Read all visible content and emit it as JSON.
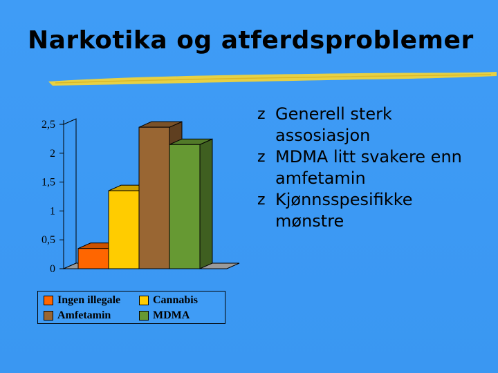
{
  "slide": {
    "title": "Narkotika og atferdsproblemer",
    "bullets": [
      {
        "lines": [
          "Generell sterk",
          "assosiasjon"
        ]
      },
      {
        "lines": [
          "MDMA litt svakere enn",
          "amfetamin"
        ]
      },
      {
        "lines": [
          "Kjønnsspesifikke",
          "mønstre"
        ]
      }
    ],
    "bullet_glyph": "z"
  },
  "colors": {
    "background": "#3f9cf6",
    "floor": "#9a9a9a",
    "rule": "#f0d43a"
  },
  "chart_data": {
    "type": "bar",
    "categories": [
      "Ingen illegale",
      "Cannabis",
      "Amfetamin",
      "MDMA"
    ],
    "values": [
      0.35,
      1.35,
      2.45,
      2.15
    ],
    "colors": [
      "#ff6600",
      "#ffcc00",
      "#996633",
      "#669933"
    ],
    "yticks": [
      "0",
      "0,5",
      "1",
      "1,5",
      "2",
      "2,5"
    ],
    "ytick_values": [
      0,
      0.5,
      1,
      1.5,
      2,
      2.5
    ],
    "ylim": [
      0,
      2.5
    ],
    "grid": false,
    "legend": {
      "placement": "bottom",
      "entries": [
        "Ingen illegale",
        "Cannabis",
        "Amfetamin",
        "MDMA"
      ]
    }
  }
}
